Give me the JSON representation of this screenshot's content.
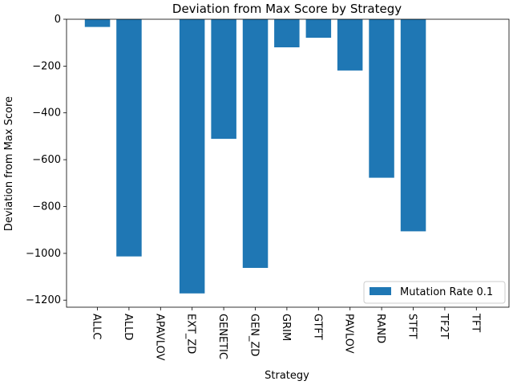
{
  "chart_data": {
    "type": "bar",
    "title": "Deviation from Max Score by Strategy",
    "xlabel": "Strategy",
    "ylabel": "Deviation from Max Score",
    "categories": [
      "ALLC",
      "ALLD",
      "APAVLOV",
      "EXT_ZD",
      "GENETIC",
      "GEN_ZD",
      "GRIM",
      "GTFT",
      "PAVLOV",
      "RAND",
      "STFT",
      "TF2T",
      "TFT"
    ],
    "series": [
      {
        "name": "Mutation Rate 0.1",
        "color": "#1f77b4",
        "values": [
          -33,
          -1013,
          0,
          -1171,
          -511,
          -1062,
          -120,
          -79,
          -219,
          -677,
          -906,
          0,
          0
        ]
      }
    ],
    "ylim": [
      -1230,
      0
    ],
    "yticks": [
      0,
      -200,
      -400,
      -600,
      -800,
      -1000,
      -1200
    ],
    "ytick_labels": [
      "0",
      "−200",
      "−400",
      "−600",
      "−800",
      "−1000",
      "−1200"
    ],
    "grid": false,
    "legend_position": "lower-right"
  }
}
